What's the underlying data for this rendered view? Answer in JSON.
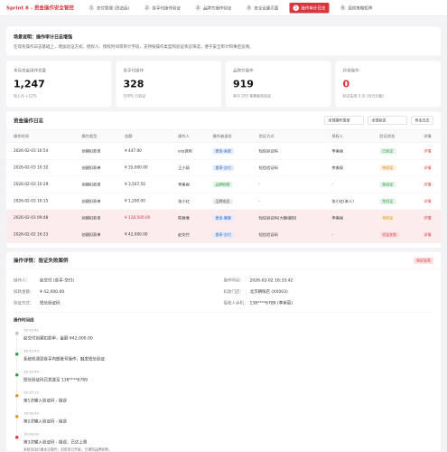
{
  "header": {
    "title": "Sprint 8 - 资金操作安全管控",
    "tabs": [
      {
        "num": "1",
        "label": "支付管理 (改造后)"
      },
      {
        "num": "2",
        "label": "食享代操作验证"
      },
      {
        "num": "3",
        "label": "品牌方操作验证"
      },
      {
        "num": "4",
        "label": "安全设置页面"
      },
      {
        "num": "5",
        "label": "操作审计日志",
        "active": true
      },
      {
        "num": "6",
        "label": "授权策略矩阵"
      }
    ]
  },
  "notice": {
    "title": "场景说明：操作审计日志增强",
    "text": "在现有操作日志基础上，增加验证方式、授权人、授权时间等审计字段，支持按操作类型和验证状态筛选，便于安全审计和事后追溯。"
  },
  "stats": [
    {
      "label": "本月资金操作总量",
      "value": "1,247",
      "note": "较上月 +12%"
    },
    {
      "label": "食享代操作",
      "value": "328",
      "note": "100% 已验证"
    },
    {
      "label": "品牌方操作",
      "value": "919",
      "note": "其中 203 笔需复核验证"
    },
    {
      "label": "异常操作",
      "value": "0",
      "note": "验证失败 3 次 (均已拦截)",
      "alert": true
    }
  ],
  "log": {
    "title": "资金操作日志",
    "filters": [
      "全部操作类型",
      "全部状态"
    ],
    "export": "导出日志",
    "columns": [
      "操作时间",
      "操作类型",
      "金额",
      "操作人",
      "操作者身份",
      "验证方式",
      "授权人",
      "验证状态",
      "详情"
    ],
    "rows": [
      {
        "cells": [
          "2026-02-03 10:54",
          "创建扣款单",
          "¥ 447.00",
          "erp调用",
          "食享-系统",
          "短信验证码",
          "李美丽",
          "已验证",
          "详情"
        ],
        "role_color": "blue",
        "status_color": "green"
      },
      {
        "cells": [
          "2026-02-03 10:32",
          "创建扣款单",
          "¥ 35,000.00",
          "王小丽",
          "食享-交付",
          "短信验证码",
          "李美丽",
          "待验证",
          "详情"
        ],
        "role_color": "blue",
        "status_color": "orange"
      },
      {
        "cells": [
          "2026-02-03 10:29",
          "创建扣款单",
          "¥ 3,507.50",
          "李美丽",
          "品牌经营",
          "-",
          "-",
          "免验证",
          "详情"
        ],
        "role_color": "green",
        "status_color": "green"
      },
      {
        "cells": [
          "2026-02-03 10:15",
          "创建扣款单",
          "¥ 1,200.00",
          "张小红",
          "品牌成员",
          "-",
          "张小红(本人)",
          "免验证",
          "详情"
        ],
        "role_color": "gray",
        "status_color": "green"
      },
      {
        "cells": [
          "2026-02-03 09:48",
          "创建扣款单",
          "¥ 128,500.00",
          "陈雅雅",
          "食享-客服",
          "短信验证码(大额强制)",
          "李美丽",
          "待验证",
          "详情"
        ],
        "role_color": "blue",
        "status_color": "orange",
        "highlight": true
      },
      {
        "cells": [
          "2026-02-02 16:33",
          "创建扣款单",
          "¥ 42,000.00",
          "赵交付",
          "食享-交付",
          "短信验证码",
          "-",
          "验证失败",
          "详情"
        ],
        "role_color": "blue",
        "status_color": "red",
        "highlight": true
      }
    ]
  },
  "detail": {
    "title": "操作详情：验证失败案例",
    "status": "验证失败",
    "fields": [
      {
        "label": "操作人：",
        "value": "赵交付 (食享-交付)"
      },
      {
        "label": "操作时间：",
        "value": "2026-02-02 16:33:42"
      },
      {
        "label": "扣款金额：",
        "value": "¥ 42,000.00"
      },
      {
        "label": "扣款门店：",
        "value": "北京朝阳店 (XX003)"
      },
      {
        "label": "验证方式：",
        "value": "短信验证码"
      },
      {
        "label": "接收人手机：",
        "value": "138****6789 (李美丽)"
      }
    ],
    "timeline_title": "操作时间线",
    "timeline": [
      {
        "time": "16:33:42",
        "text": "赵交付创建扣款单，金额 ¥42,000.00",
        "color": "#bbbbbb"
      },
      {
        "time": "16:33:43",
        "text": "系统检测到食享内部账号操作，触发短信验证",
        "color": "#2e9d4a"
      },
      {
        "time": "16:33:44",
        "text": "短信验证码已发送至 138****6789",
        "color": "#2e9d4a"
      },
      {
        "time": "16:35:15",
        "text": "第1次输入验证码 - 错误",
        "color": "#e8912c"
      },
      {
        "time": "16:36:44",
        "text": "第2次输入验证码 - 错误",
        "color": "#e8912c"
      },
      {
        "time": "16:38:00",
        "text": "第3次输入验证码 - 错误，已达上限",
        "sub": "系统自动拦截本次操作，扣款单已作废，已通知品牌经营。",
        "color": "#d9363e"
      }
    ]
  }
}
